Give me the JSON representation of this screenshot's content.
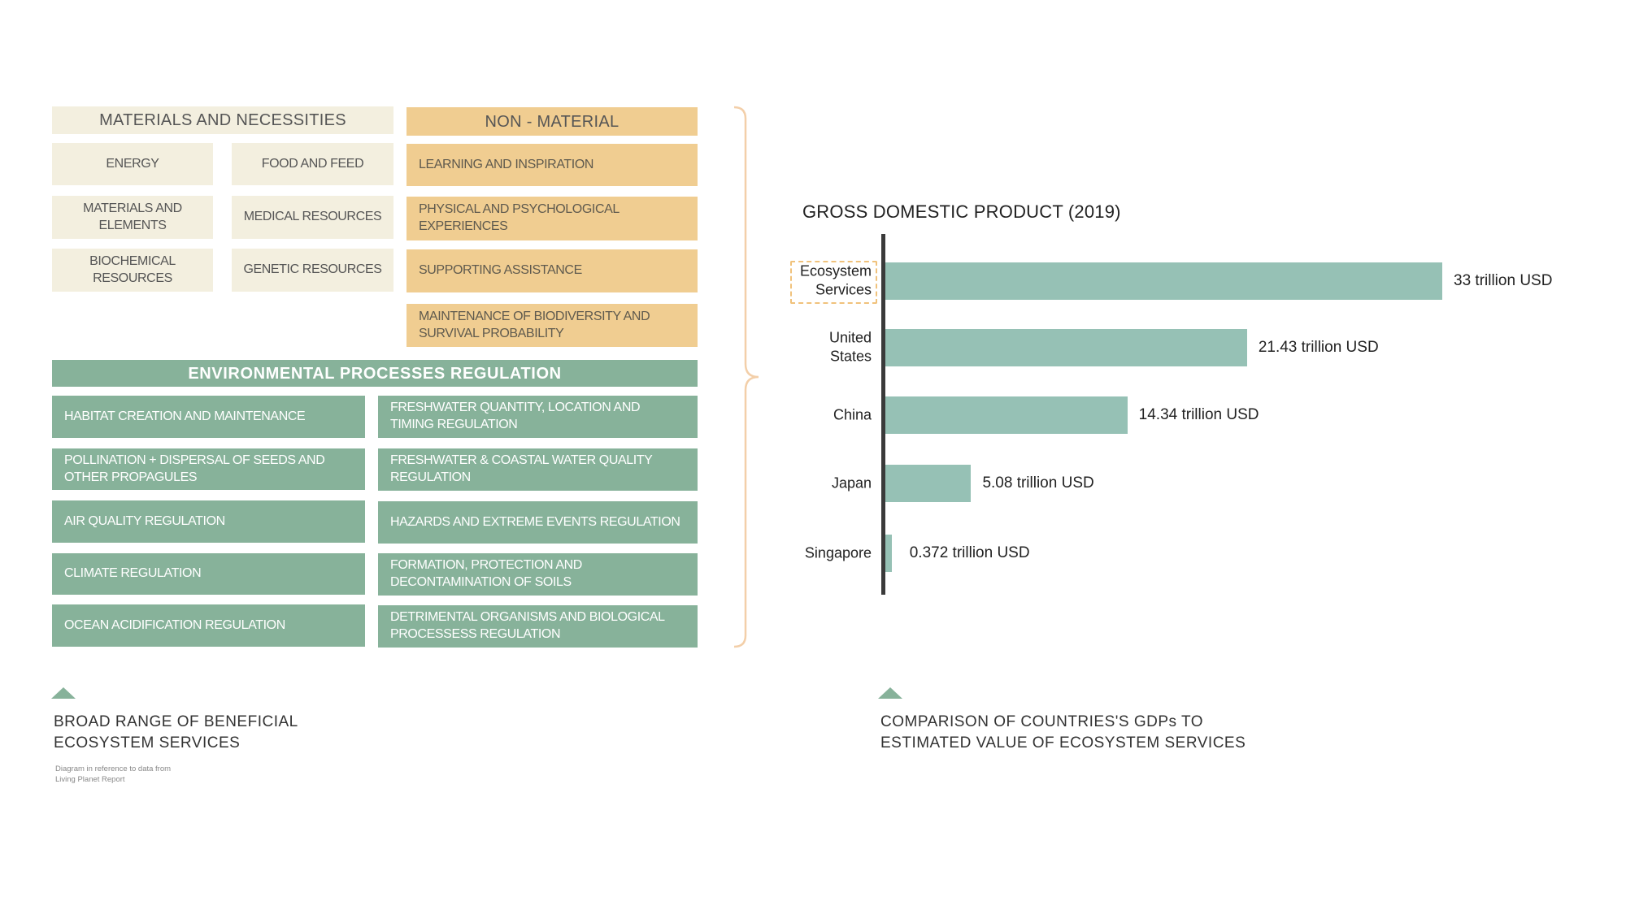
{
  "diagram": {
    "materials": {
      "header": "MATERIALS AND NECESSITIES",
      "items": [
        "ENERGY",
        "FOOD AND FEED",
        "MATERIALS AND ELEMENTS",
        "MEDICAL RESOURCES",
        "BIOCHEMICAL RESOURCES",
        "GENETIC RESOURCES"
      ]
    },
    "non_material": {
      "header": "NON - MATERIAL",
      "items": [
        "LEARNING AND INSPIRATION",
        "PHYSICAL AND PSYCHOLOGICAL EXPERIENCES",
        "SUPPORTING ASSISTANCE",
        "MAINTENANCE OF BIODIVERSITY AND SURVIVAL PROBABILITY"
      ]
    },
    "regulation": {
      "header": "ENVIRONMENTAL PROCESSES REGULATION",
      "left_items": [
        "HABITAT CREATION AND MAINTENANCE",
        "POLLINATION + DISPERSAL OF SEEDS AND OTHER PROPAGULES",
        "AIR QUALITY REGULATION",
        "CLIMATE REGULATION",
        "OCEAN ACIDIFICATION REGULATION"
      ],
      "right_items": [
        "FRESHWATER QUANTITY, LOCATION AND TIMING REGULATION",
        "FRESHWATER & COASTAL WATER QUALITY REGULATION",
        "HAZARDS AND EXTREME EVENTS REGULATION",
        "FORMATION, PROTECTION AND DECONTAMINATION OF SOILS",
        "DETRIMENTAL ORGANISMS AND  BIOLOGICAL PROCESSESS REGULATION"
      ]
    },
    "caption": "BROAD RANGE OF BENEFICIAL ECOSYSTEM SERVICES",
    "note": "Diagram in reference to data from Living Planet Report"
  },
  "chart_caption": "COMPARISON OF COUNTRIES'S  GDPs TO ESTIMATED VALUE OF ECOSYSTEM SERVICES",
  "colors": {
    "cream": "#f3efdf",
    "amber": "#f0cd91",
    "green": "#87b29a",
    "bar": "#96c1b5",
    "bracket": "#f3cfa9",
    "highlight_border": "#f0c27c"
  },
  "icons": [
    "triangle-up-icon",
    "bracket-icon"
  ],
  "chart_data": {
    "type": "bar",
    "orientation": "horizontal",
    "title": "GROSS DOMESTIC PRODUCT (2019)",
    "categories": [
      "Ecosystem Services",
      "United States",
      "China",
      "Japan",
      "Singapore"
    ],
    "values": [
      33,
      21.43,
      14.34,
      5.08,
      0.372
    ],
    "value_labels": [
      "33 trillion USD",
      "21.43 trillion USD",
      "14.34 trillion USD",
      "5.08 trillion USD",
      "0.372 trillion USD"
    ],
    "unit": "trillion USD",
    "xlim": [
      0,
      33
    ],
    "highlighted_category": "Ecosystem Services",
    "grid": false,
    "legend": "none"
  }
}
